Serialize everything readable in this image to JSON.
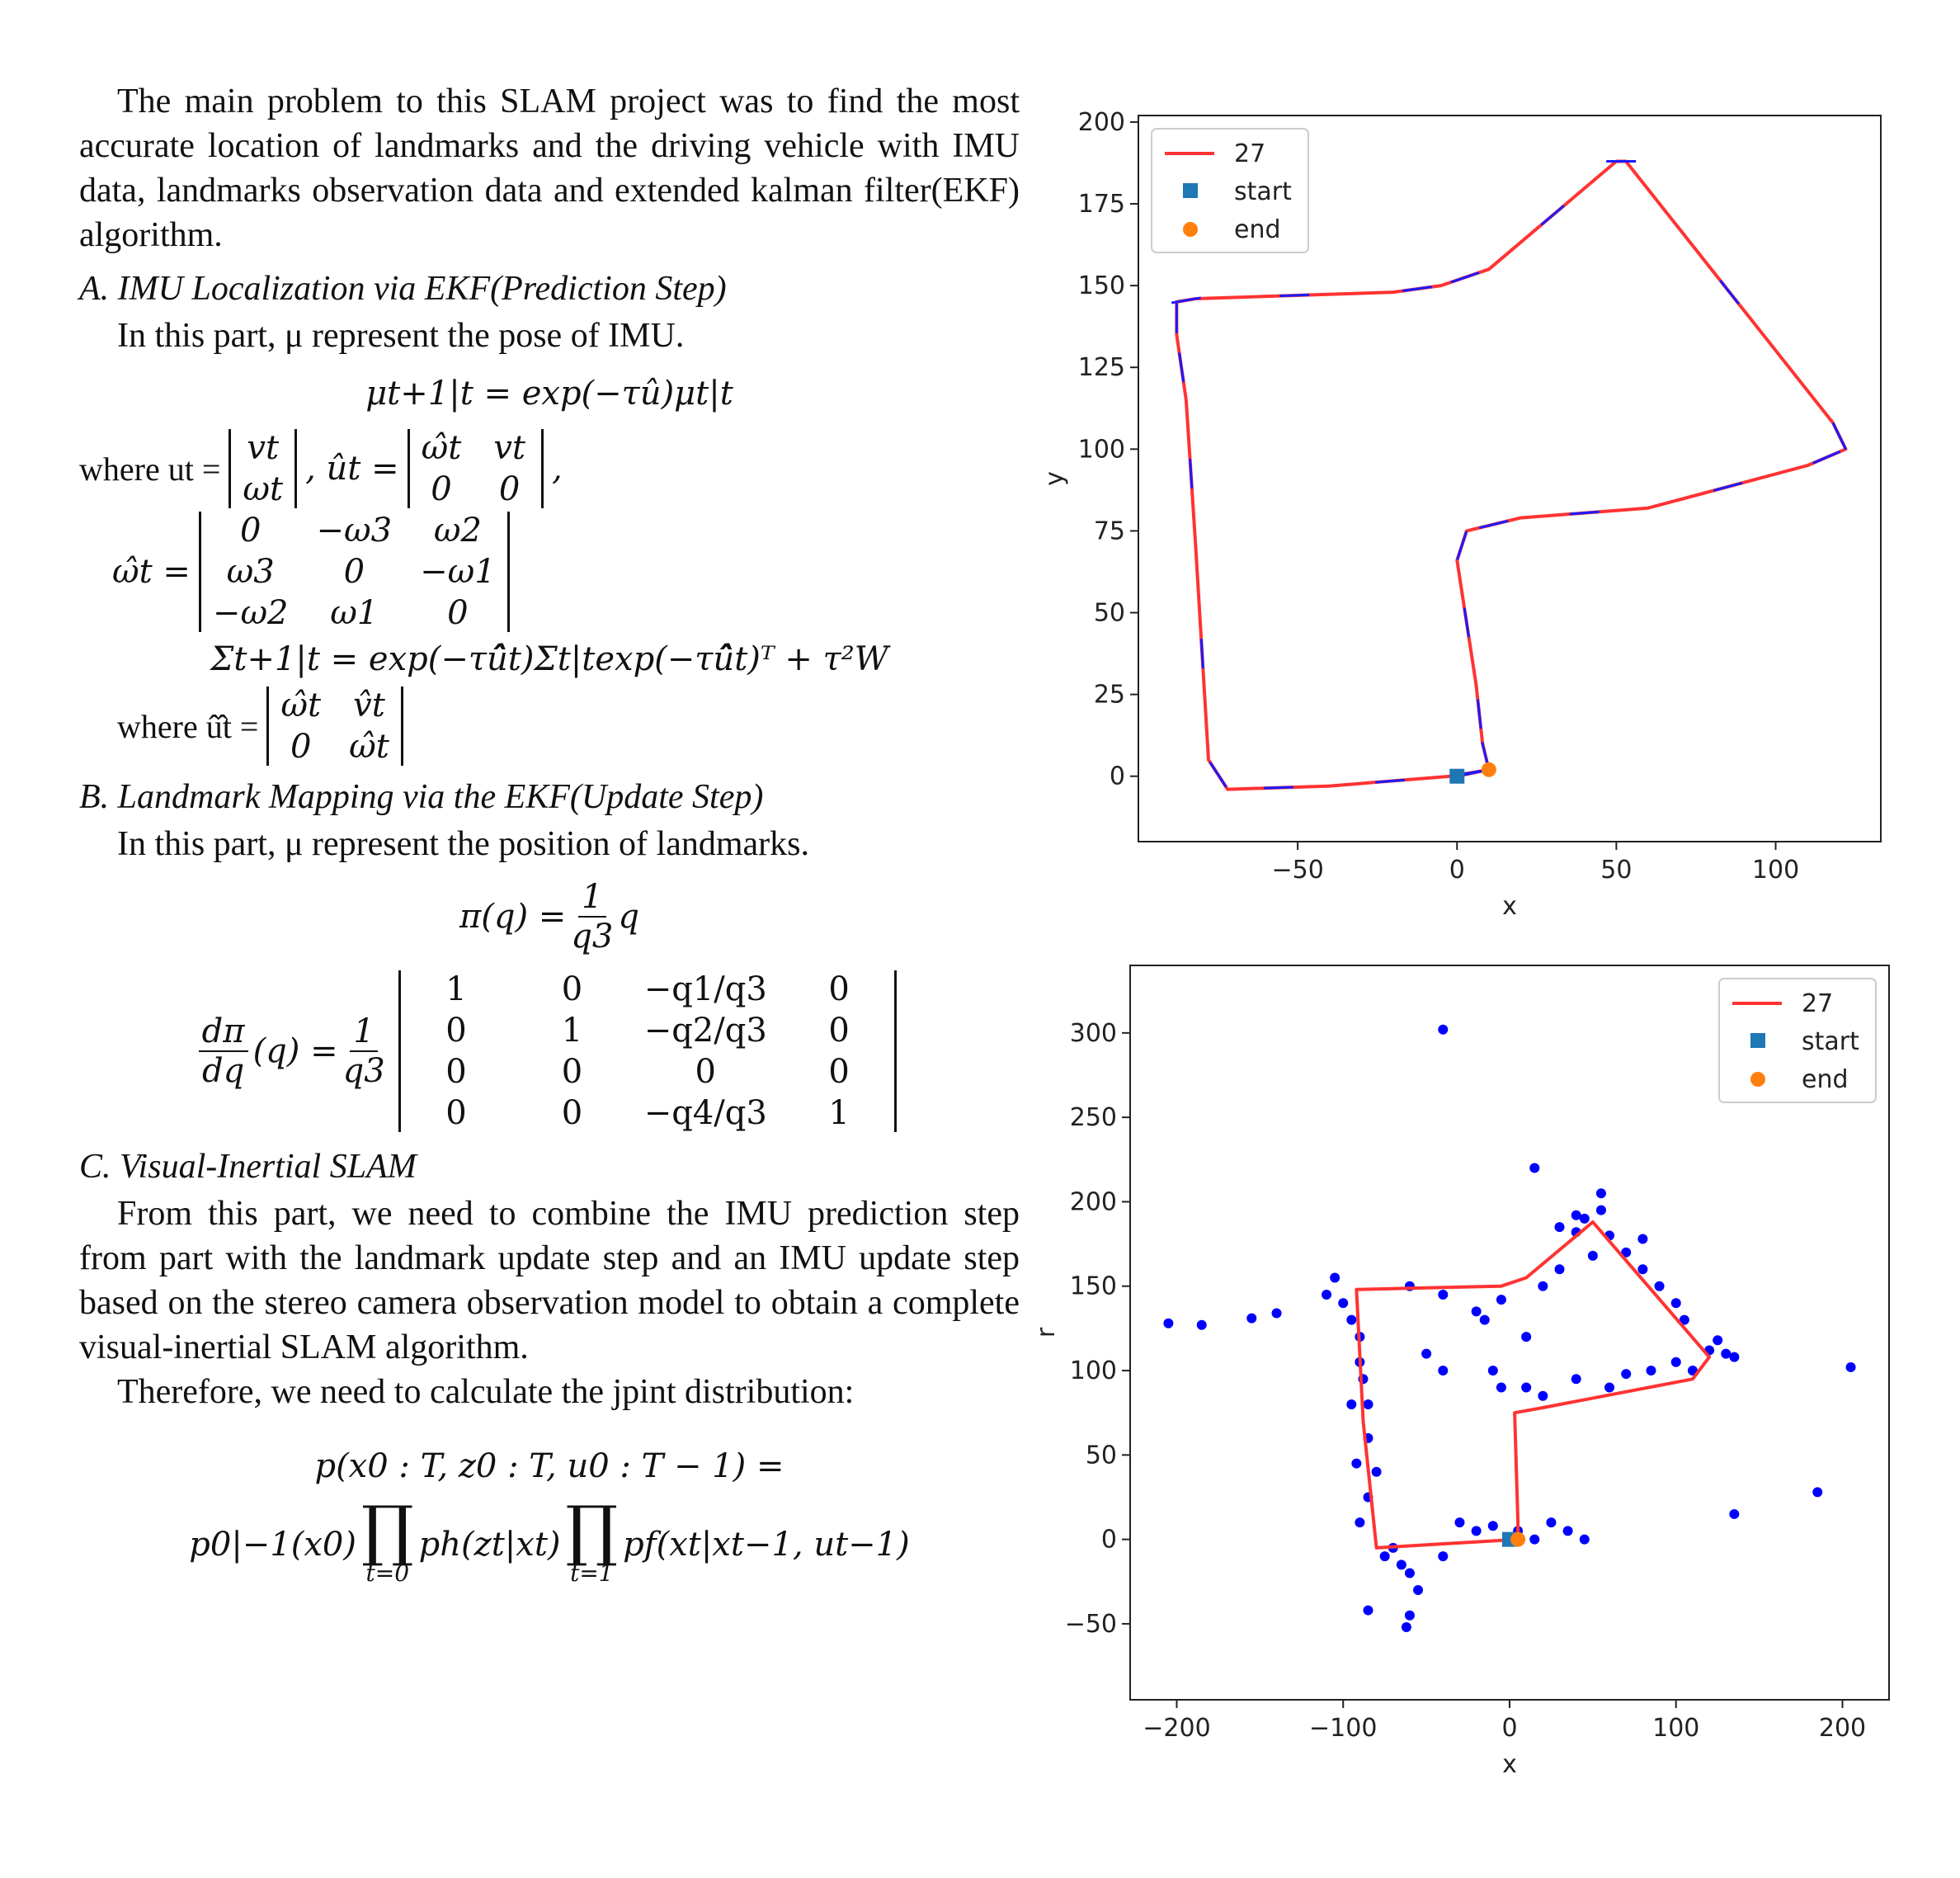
{
  "text": {
    "intro": "The main problem to this SLAM project was to find the most accurate location of landmarks and the driving vehicle with IMU data, landmarks observation data and extended kalman filter(EKF) algorithm.",
    "secA_title": "A. IMU Localization via EKF(Prediction Step)",
    "secA_intro": "In this part, μ represent the pose of IMU.",
    "eqA1": "μt+1|t = exp(−τû)μt|t",
    "where_u": "where ut =",
    "u_matrix": [
      "vt",
      "ωt"
    ],
    "u_hat_label": ", ût =",
    "u_hat_matrix": [
      "ω̂t",
      "vt",
      "0",
      "0"
    ],
    "omega_hat_label": "ω̂t =",
    "omega_matrix": [
      "0",
      "−ω3",
      "ω2",
      "ω3",
      "0",
      "−ω1",
      "−ω2",
      "ω1",
      "0"
    ],
    "eqA2": "Σt+1|t = exp(−τû̂t)Σt|texp(−τû̂t)ᵀ + τ²W",
    "where_u2": "where û̂t =",
    "u2_matrix": [
      "ω̂t",
      "v̂t",
      "0",
      "ω̂t"
    ],
    "secB_title": "B. Landmark Mapping via the EKF(Update Step)",
    "secB_intro": "In this part, μ represent the position of landmarks.",
    "pi_lhs": "π(q) =",
    "pi_num": "1",
    "pi_den": "q3",
    "pi_tail": "q",
    "dpi_num": "dπ",
    "dpi_den": "dq",
    "dpi_mid": "(q) =",
    "dpi_frac_num": "1",
    "dpi_frac_den": "q3",
    "dpi_matrix": [
      "1",
      "0",
      "−q1/q3",
      "0",
      "0",
      "1",
      "−q2/q3",
      "0",
      "0",
      "0",
      "0",
      "0",
      "0",
      "0",
      "−q4/q3",
      "1"
    ],
    "secC_title": "C. Visual-Inertial SLAM",
    "secC_p1": "From this part, we need to combine the IMU prediction step from part with the landmark update step and an IMU update step based on the stereo camera observation model to obtain a complete visual-inertial SLAM algorithm.",
    "secC_p2": "Therefore, we need to calculate the jpint distribution:",
    "joint_lhs": "p(x0 : T, z0 : T, u0 : T − 1) =",
    "joint_p0": "p0|−1(x0)",
    "joint_ph": "ph(zt|xt)",
    "joint_pf": "pf(xt|xt−1, ut−1)",
    "prod1_sub": "t=0",
    "prod2_sub": "t=1"
  },
  "chart_data": [
    {
      "type": "line",
      "xlabel": "x",
      "ylabel": "y",
      "xlim": [
        -100,
        133
      ],
      "ylim": [
        -20,
        202
      ],
      "xticks": [
        "−50",
        "0",
        "50",
        "100"
      ],
      "xtick_values": [
        -50,
        0,
        50,
        100
      ],
      "yticks": [
        "0",
        "25",
        "50",
        "75",
        "100",
        "125",
        "150",
        "175",
        "200"
      ],
      "ytick_values": [
        0,
        25,
        50,
        75,
        100,
        125,
        150,
        175,
        200
      ],
      "legend": [
        "27",
        "start",
        "end"
      ],
      "legend_position": "upper-left",
      "trajectory": [
        [
          0,
          0
        ],
        [
          10,
          2
        ],
        [
          -2,
          0
        ],
        [
          -40,
          -3
        ],
        [
          -72,
          -4
        ],
        [
          -78,
          5
        ],
        [
          -82,
          70
        ],
        [
          -85,
          115
        ],
        [
          -88,
          135
        ],
        [
          -88,
          145
        ],
        [
          -82,
          146
        ],
        [
          -20,
          148
        ],
        [
          -5,
          150
        ],
        [
          10,
          155
        ],
        [
          50,
          188
        ],
        [
          53,
          188
        ],
        [
          118,
          108
        ],
        [
          122,
          100
        ],
        [
          110,
          95
        ],
        [
          60,
          82
        ],
        [
          20,
          79
        ],
        [
          3,
          75
        ],
        [
          0,
          66
        ],
        [
          6,
          28
        ],
        [
          8,
          10
        ],
        [
          10,
          2
        ]
      ],
      "start": [
        0,
        0
      ],
      "end": [
        10,
        2
      ],
      "colors": {
        "line": "#ff3333",
        "start": "#1f77b4",
        "end": "#ff7f0e",
        "arrows": "#1a1aff"
      }
    },
    {
      "type": "scatter",
      "xlabel": "x",
      "ylabel": "r",
      "xlim": [
        -228,
        228
      ],
      "ylim": [
        -95,
        340
      ],
      "xticks": [
        "−200",
        "−100",
        "0",
        "100",
        "200"
      ],
      "xtick_values": [
        -200,
        -100,
        0,
        100,
        200
      ],
      "yticks": [
        "−50",
        "0",
        "50",
        "100",
        "150",
        "200",
        "250",
        "300"
      ],
      "ytick_values": [
        -50,
        0,
        50,
        100,
        150,
        200,
        250,
        300
      ],
      "legend": [
        "27",
        "start",
        "end"
      ],
      "legend_position": "upper-right",
      "trajectory": [
        [
          0,
          0
        ],
        [
          5,
          0
        ],
        [
          -80,
          -5
        ],
        [
          -88,
          70
        ],
        [
          -92,
          148
        ],
        [
          -5,
          150
        ],
        [
          10,
          155
        ],
        [
          50,
          188
        ],
        [
          120,
          108
        ],
        [
          110,
          95
        ],
        [
          20,
          78
        ],
        [
          3,
          75
        ],
        [
          5,
          10
        ],
        [
          5,
          0
        ]
      ],
      "landmarks": [
        [
          -40,
          302
        ],
        [
          15,
          220
        ],
        [
          -205,
          128
        ],
        [
          -185,
          127
        ],
        [
          -155,
          131
        ],
        [
          -140,
          134
        ],
        [
          185,
          28
        ],
        [
          135,
          15
        ],
        [
          205,
          102
        ],
        [
          -110,
          145
        ],
        [
          -105,
          155
        ],
        [
          -100,
          140
        ],
        [
          -95,
          130
        ],
        [
          -90,
          120
        ],
        [
          -88,
          95
        ],
        [
          -85,
          80
        ],
        [
          -85,
          60
        ],
        [
          -80,
          40
        ],
        [
          -85,
          25
        ],
        [
          -90,
          10
        ],
        [
          -75,
          -10
        ],
        [
          -60,
          -20
        ],
        [
          -55,
          -30
        ],
        [
          -60,
          -45
        ],
        [
          -62,
          -52
        ],
        [
          -85,
          -42
        ],
        [
          -40,
          -10
        ],
        [
          -20,
          5
        ],
        [
          -30,
          10
        ],
        [
          -10,
          8
        ],
        [
          5,
          5
        ],
        [
          15,
          0
        ],
        [
          25,
          10
        ],
        [
          35,
          5
        ],
        [
          45,
          0
        ],
        [
          -10,
          100
        ],
        [
          -5,
          90
        ],
        [
          10,
          90
        ],
        [
          20,
          85
        ],
        [
          40,
          95
        ],
        [
          60,
          90
        ],
        [
          70,
          98
        ],
        [
          85,
          100
        ],
        [
          100,
          105
        ],
        [
          110,
          100
        ],
        [
          120,
          112
        ],
        [
          125,
          118
        ],
        [
          130,
          110
        ],
        [
          135,
          108
        ],
        [
          30,
          185
        ],
        [
          40,
          192
        ],
        [
          45,
          190
        ],
        [
          55,
          195
        ],
        [
          60,
          180
        ],
        [
          70,
          170
        ],
        [
          80,
          160
        ],
        [
          90,
          150
        ],
        [
          100,
          140
        ],
        [
          105,
          130
        ],
        [
          -60,
          150
        ],
        [
          -40,
          145
        ],
        [
          -20,
          135
        ],
        [
          -15,
          130
        ],
        [
          -5,
          142
        ],
        [
          20,
          150
        ],
        [
          30,
          160
        ],
        [
          50,
          168
        ],
        [
          40,
          182
        ],
        [
          80,
          178
        ],
        [
          10,
          120
        ],
        [
          -50,
          110
        ],
        [
          -40,
          100
        ],
        [
          -90,
          105
        ],
        [
          -95,
          80
        ],
        [
          -92,
          45
        ],
        [
          -70,
          -5
        ],
        [
          -65,
          -15
        ],
        [
          55,
          205
        ]
      ],
      "start": [
        0,
        0
      ],
      "end": [
        5,
        0
      ],
      "colors": {
        "line": "#ff3333",
        "start": "#1f77b4",
        "end": "#ff7f0e",
        "points": "#0000ff"
      }
    }
  ]
}
